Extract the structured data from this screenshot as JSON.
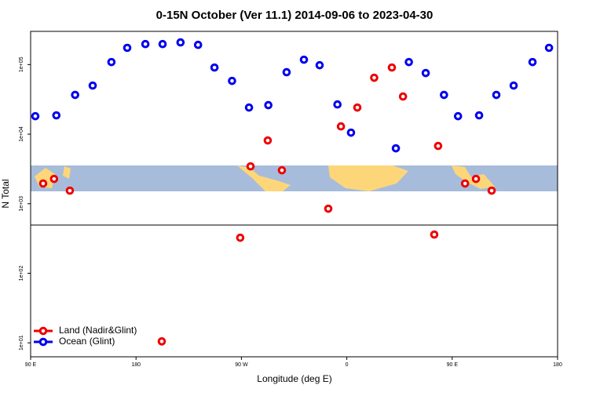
{
  "chart_data": {
    "type": "scatter",
    "title": "0-15N October (Ver 11.1)   2014-09-06 to 2023-04-30",
    "x_label": "Longitude (deg E)",
    "y_label": "N Total",
    "xlim": [
      90,
      540
    ],
    "xticks": [
      {
        "value": 90,
        "label": "90 E"
      },
      {
        "value": 180,
        "label": "180"
      },
      {
        "value": 270,
        "label": "90 W"
      },
      {
        "value": 360,
        "label": "0"
      },
      {
        "value": 450,
        "label": "90 E"
      },
      {
        "value": 540,
        "label": "180"
      }
    ],
    "ylim": [
      6.3,
      300000
    ],
    "log_y": true,
    "yticks": [
      {
        "value": 10,
        "label": "1e+01"
      },
      {
        "value": 100,
        "label": "1e+02"
      },
      {
        "value": 1000,
        "label": "1e+03"
      },
      {
        "value": 10000,
        "label": "1e+04"
      },
      {
        "value": 100000,
        "label": "1e+05"
      }
    ],
    "legend": "bottom-left",
    "series": [
      {
        "name": "Land (Nadir&Glint)",
        "color": "#ee0000",
        "x": [
          100.7,
          110,
          123.5,
          202,
          269,
          277.8,
          292.5,
          304.6,
          344.2,
          355,
          369,
          383.4,
          398.5,
          408,
          434.7,
          438,
          461,
          470.3,
          483.7
        ],
        "values": [
          1950,
          2270,
          1540,
          10.5,
          324,
          3440,
          8110,
          3020,
          847,
          12900,
          24100,
          64600,
          90600,
          34700,
          360,
          6760,
          1950,
          2270,
          1540
        ]
      },
      {
        "name": "Ocean (Glint)",
        "color": "#0000ee",
        "x": [
          94,
          112,
          128,
          143,
          159,
          172.5,
          188,
          202.7,
          218,
          233,
          247,
          262,
          276.5,
          293,
          308.6,
          323.4,
          336.8,
          352,
          363.6,
          401.9,
          413,
          427.4,
          443,
          455,
          473,
          487.7,
          502.5,
          518.6,
          532.7
        ],
        "values": [
          18100,
          18600,
          36600,
          49900,
          108600,
          174000,
          197000,
          197000,
          208000,
          192000,
          90600,
          58200,
          24100,
          26100,
          77600,
          117500,
          97800,
          26700,
          10500,
          6250,
          108600,
          75500,
          36600,
          18100,
          18600,
          36600,
          49900,
          108600,
          174000
        ]
      }
    ]
  }
}
